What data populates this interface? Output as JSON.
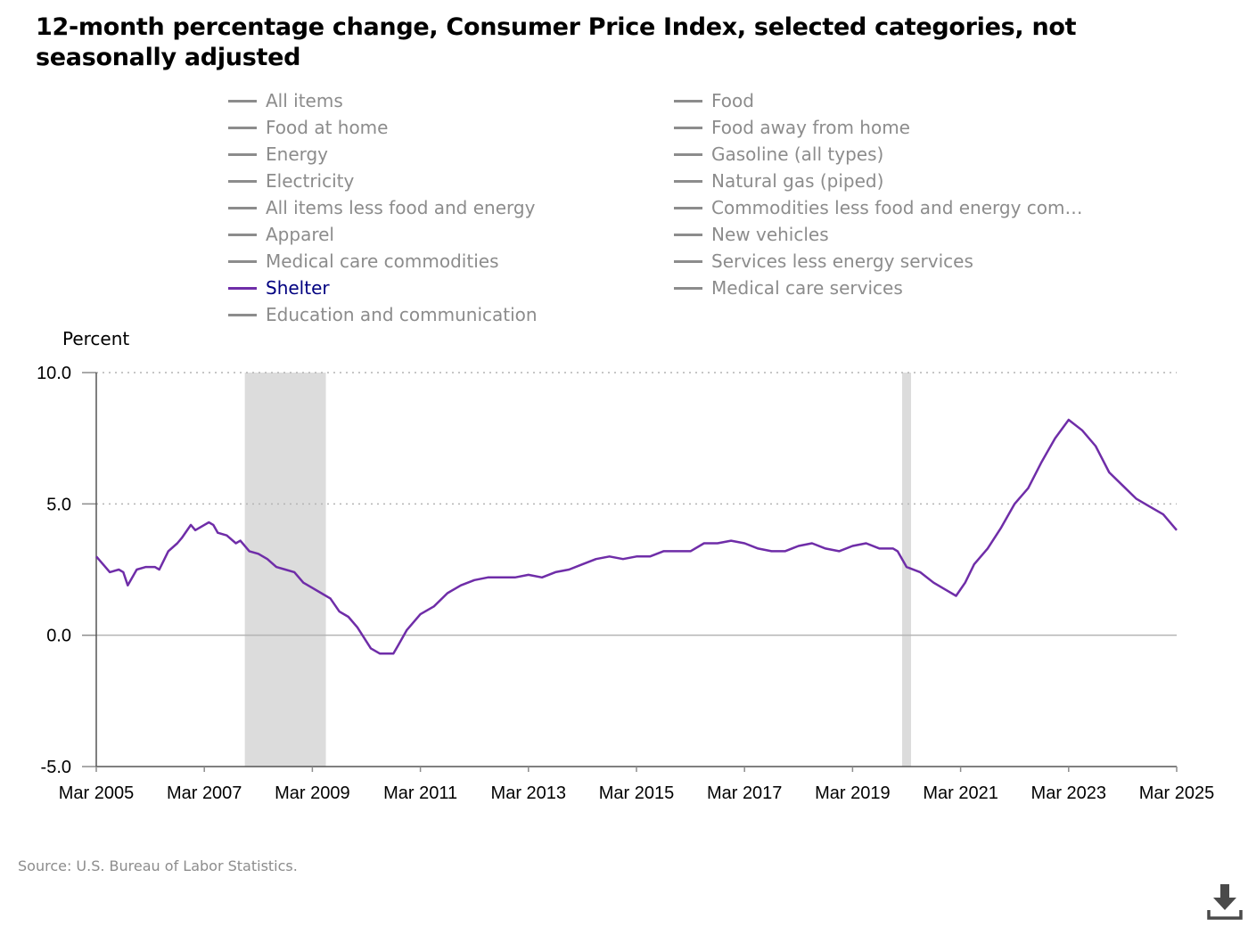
{
  "title": "12-month percentage change, Consumer Price Index, selected categories, not seasonally adjusted",
  "legend": [
    {
      "label": "All items",
      "active": false
    },
    {
      "label": "Food",
      "active": false
    },
    {
      "label": "Food at home",
      "active": false
    },
    {
      "label": "Food away from home",
      "active": false
    },
    {
      "label": "Energy",
      "active": false
    },
    {
      "label": "Gasoline (all types)",
      "active": false
    },
    {
      "label": "Electricity",
      "active": false
    },
    {
      "label": "Natural gas (piped)",
      "active": false
    },
    {
      "label": "All items less food and energy",
      "active": false
    },
    {
      "label": "Commodities less food and energy com…",
      "active": false
    },
    {
      "label": "Apparel",
      "active": false
    },
    {
      "label": "New vehicles",
      "active": false
    },
    {
      "label": "Medical care commodities",
      "active": false
    },
    {
      "label": "Services less energy services",
      "active": false
    },
    {
      "label": "Shelter",
      "active": true
    },
    {
      "label": "Medical care services",
      "active": false
    },
    {
      "label": "Education and communication",
      "active": false
    }
  ],
  "source": "Source: U.S. Bureau of Labor Statistics.",
  "download_icon": "download-icon",
  "colors": {
    "series": "#6f2da8",
    "recession": "#dcdcdc",
    "inactive_legend": "#8c8c8c",
    "active_legend_text": "#000080"
  },
  "chart_data": {
    "type": "line",
    "ylabel": "Percent",
    "ylim": [
      -5.0,
      10.0
    ],
    "yticks": [
      "10.0",
      "5.0",
      "0.0",
      "-5.0"
    ],
    "xlim": [
      "2005-03",
      "2025-03"
    ],
    "xticks": [
      "Mar 2005",
      "Mar 2007",
      "Mar 2009",
      "Mar 2011",
      "Mar 2013",
      "Mar 2015",
      "Mar 2017",
      "Mar 2019",
      "Mar 2021",
      "Mar 2023",
      "Mar 2025"
    ],
    "grid": "horizontal dotted",
    "recessions": [
      [
        "2007-12",
        "2009-06"
      ],
      [
        "2020-02",
        "2020-04"
      ]
    ],
    "series": [
      {
        "name": "Shelter",
        "points": [
          [
            "2005-03",
            3.0
          ],
          [
            "2005-06",
            2.4
          ],
          [
            "2005-08",
            2.5
          ],
          [
            "2005-09",
            2.4
          ],
          [
            "2005-10",
            1.9
          ],
          [
            "2005-12",
            2.5
          ],
          [
            "2006-02",
            2.6
          ],
          [
            "2006-04",
            2.6
          ],
          [
            "2006-05",
            2.5
          ],
          [
            "2006-07",
            3.2
          ],
          [
            "2006-09",
            3.5
          ],
          [
            "2006-10",
            3.7
          ],
          [
            "2006-12",
            4.2
          ],
          [
            "2007-01",
            4.0
          ],
          [
            "2007-03",
            4.2
          ],
          [
            "2007-04",
            4.3
          ],
          [
            "2007-05",
            4.2
          ],
          [
            "2007-06",
            3.9
          ],
          [
            "2007-08",
            3.8
          ],
          [
            "2007-10",
            3.5
          ],
          [
            "2007-11",
            3.6
          ],
          [
            "2008-01",
            3.2
          ],
          [
            "2008-03",
            3.1
          ],
          [
            "2008-05",
            2.9
          ],
          [
            "2008-07",
            2.6
          ],
          [
            "2008-09",
            2.5
          ],
          [
            "2008-11",
            2.4
          ],
          [
            "2009-01",
            2.0
          ],
          [
            "2009-03",
            1.8
          ],
          [
            "2009-05",
            1.6
          ],
          [
            "2009-07",
            1.4
          ],
          [
            "2009-09",
            0.9
          ],
          [
            "2009-11",
            0.7
          ],
          [
            "2010-01",
            0.3
          ],
          [
            "2010-04",
            -0.5
          ],
          [
            "2010-06",
            -0.7
          ],
          [
            "2010-09",
            -0.7
          ],
          [
            "2010-10",
            -0.4
          ],
          [
            "2010-12",
            0.2
          ],
          [
            "2011-03",
            0.8
          ],
          [
            "2011-06",
            1.1
          ],
          [
            "2011-09",
            1.6
          ],
          [
            "2011-12",
            1.9
          ],
          [
            "2012-03",
            2.1
          ],
          [
            "2012-06",
            2.2
          ],
          [
            "2012-09",
            2.2
          ],
          [
            "2012-12",
            2.2
          ],
          [
            "2013-03",
            2.3
          ],
          [
            "2013-06",
            2.2
          ],
          [
            "2013-09",
            2.4
          ],
          [
            "2013-12",
            2.5
          ],
          [
            "2014-03",
            2.7
          ],
          [
            "2014-06",
            2.9
          ],
          [
            "2014-09",
            3.0
          ],
          [
            "2014-12",
            2.9
          ],
          [
            "2015-03",
            3.0
          ],
          [
            "2015-06",
            3.0
          ],
          [
            "2015-09",
            3.2
          ],
          [
            "2015-12",
            3.2
          ],
          [
            "2016-03",
            3.2
          ],
          [
            "2016-06",
            3.5
          ],
          [
            "2016-09",
            3.5
          ],
          [
            "2016-12",
            3.6
          ],
          [
            "2017-03",
            3.5
          ],
          [
            "2017-06",
            3.3
          ],
          [
            "2017-09",
            3.2
          ],
          [
            "2017-12",
            3.2
          ],
          [
            "2018-03",
            3.4
          ],
          [
            "2018-06",
            3.5
          ],
          [
            "2018-09",
            3.3
          ],
          [
            "2018-12",
            3.2
          ],
          [
            "2019-03",
            3.4
          ],
          [
            "2019-06",
            3.5
          ],
          [
            "2019-09",
            3.3
          ],
          [
            "2019-12",
            3.3
          ],
          [
            "2020-01",
            3.2
          ],
          [
            "2020-03",
            2.6
          ],
          [
            "2020-06",
            2.4
          ],
          [
            "2020-09",
            2.0
          ],
          [
            "2020-12",
            1.7
          ],
          [
            "2021-02",
            1.5
          ],
          [
            "2021-04",
            2.0
          ],
          [
            "2021-06",
            2.7
          ],
          [
            "2021-09",
            3.3
          ],
          [
            "2021-12",
            4.1
          ],
          [
            "2022-03",
            5.0
          ],
          [
            "2022-06",
            5.6
          ],
          [
            "2022-09",
            6.6
          ],
          [
            "2022-12",
            7.5
          ],
          [
            "2023-03",
            8.2
          ],
          [
            "2023-06",
            7.8
          ],
          [
            "2023-09",
            7.2
          ],
          [
            "2023-12",
            6.2
          ],
          [
            "2024-03",
            5.7
          ],
          [
            "2024-06",
            5.2
          ],
          [
            "2024-09",
            4.9
          ],
          [
            "2024-12",
            4.6
          ],
          [
            "2025-03",
            4.0
          ]
        ]
      }
    ]
  }
}
